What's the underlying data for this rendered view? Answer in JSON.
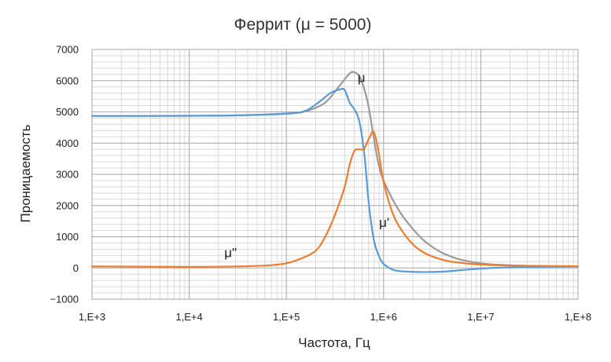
{
  "chart_data": {
    "type": "line",
    "title": "Феррит (μ = 5000)",
    "xlabel": "Частота, Гц",
    "ylabel": "Проницаемость",
    "x_scale": "log",
    "xlim": [
      1000,
      100000000
    ],
    "ylim": [
      -1000,
      7000
    ],
    "x_ticks": [
      1000,
      10000,
      100000,
      1000000,
      10000000,
      100000000
    ],
    "x_tick_labels": [
      "1,E+3",
      "1,E+4",
      "1,E+5",
      "1,E+6",
      "1,E+7",
      "1,E+8"
    ],
    "y_ticks": [
      -1000,
      0,
      1000,
      2000,
      3000,
      4000,
      5000,
      6000,
      7000
    ],
    "y_tick_labels": [
      "−1000",
      "0",
      "1000",
      "2000",
      "3000",
      "4000",
      "5000",
      "6000",
      "7000"
    ],
    "grid": true,
    "legend": "none",
    "series": [
      {
        "name": "μ",
        "color": "#9a9a9a",
        "points": [
          [
            1000,
            4870
          ],
          [
            10000,
            4875
          ],
          [
            31600,
            4890
          ],
          [
            100000,
            4950
          ],
          [
            158000,
            5020
          ],
          [
            251000,
            5300
          ],
          [
            355000,
            5850
          ],
          [
            447000,
            6230
          ],
          [
            500000,
            6270
          ],
          [
            562000,
            6150
          ],
          [
            631000,
            5750
          ],
          [
            708000,
            5100
          ],
          [
            794000,
            4150
          ],
          [
            891000,
            3300
          ],
          [
            1000000,
            2800
          ],
          [
            1260000,
            2150
          ],
          [
            1580000,
            1650
          ],
          [
            2000000,
            1250
          ],
          [
            2510000,
            920
          ],
          [
            3160000,
            680
          ],
          [
            3980000,
            490
          ],
          [
            5010000,
            360
          ],
          [
            6310000,
            260
          ],
          [
            10000000,
            150
          ],
          [
            15800000,
            100
          ],
          [
            31600000,
            70
          ],
          [
            100000000,
            55
          ]
        ]
      },
      {
        "name": "μ'",
        "color": "#5b9bd5",
        "points": [
          [
            1000,
            4870
          ],
          [
            10000,
            4875
          ],
          [
            31600,
            4890
          ],
          [
            100000,
            4940
          ],
          [
            158000,
            5040
          ],
          [
            224000,
            5350
          ],
          [
            282000,
            5600
          ],
          [
            355000,
            5720
          ],
          [
            398000,
            5700
          ],
          [
            447000,
            5300
          ],
          [
            501000,
            5080
          ],
          [
            562000,
            4700
          ],
          [
            631000,
            3700
          ],
          [
            708000,
            2000
          ],
          [
            794000,
            900
          ],
          [
            891000,
            400
          ],
          [
            1000000,
            130
          ],
          [
            1260000,
            -60
          ],
          [
            1580000,
            -110
          ],
          [
            2510000,
            -130
          ],
          [
            3980000,
            -120
          ],
          [
            6310000,
            -70
          ],
          [
            10000000,
            -20
          ],
          [
            15800000,
            10
          ],
          [
            31600000,
            35
          ],
          [
            100000000,
            45
          ]
        ]
      },
      {
        "name": "μ\"",
        "color": "#ed7d31",
        "points": [
          [
            1000,
            50
          ],
          [
            10000,
            35
          ],
          [
            31600,
            50
          ],
          [
            63100,
            80
          ],
          [
            100000,
            150
          ],
          [
            141000,
            300
          ],
          [
            200000,
            550
          ],
          [
            251000,
            1000
          ],
          [
            316000,
            1700
          ],
          [
            398000,
            2600
          ],
          [
            447000,
            3300
          ],
          [
            501000,
            3750
          ],
          [
            562000,
            3800
          ],
          [
            631000,
            3820
          ],
          [
            708000,
            4150
          ],
          [
            794000,
            4350
          ],
          [
            891000,
            3700
          ],
          [
            1000000,
            2750
          ],
          [
            1260000,
            1700
          ],
          [
            1580000,
            1150
          ],
          [
            2000000,
            760
          ],
          [
            2510000,
            520
          ],
          [
            3160000,
            370
          ],
          [
            3980000,
            270
          ],
          [
            5010000,
            200
          ],
          [
            10000000,
            110
          ],
          [
            31600000,
            65
          ],
          [
            100000000,
            55
          ]
        ]
      }
    ],
    "series_labels": [
      {
        "text": "μ",
        "x": 540000,
        "y": 5950
      },
      {
        "text": "μ'",
        "x": 900000,
        "y": 1320
      },
      {
        "text": "μ\"",
        "x": 23000,
        "y": 340
      }
    ]
  }
}
